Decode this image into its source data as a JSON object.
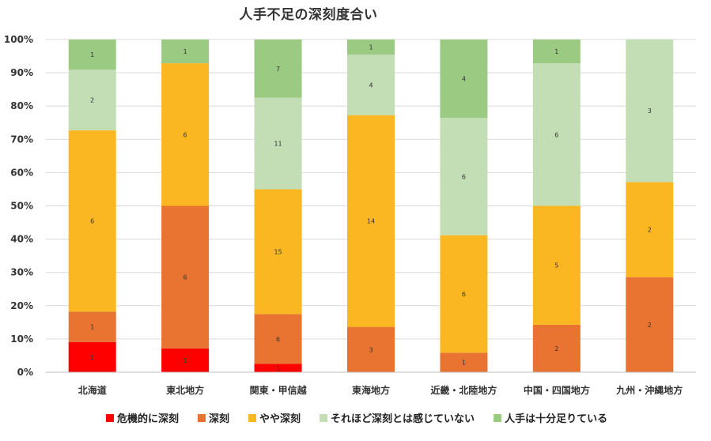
{
  "chart_data": {
    "type": "bar",
    "stacked": true,
    "normalized_percent": true,
    "title": "人手不足の深刻度合い",
    "categories": [
      "北海道",
      "東北地方",
      "関東・甲信越",
      "東海地方",
      "近畿・北陸地方",
      "中国・四国地方",
      "九州・沖縄地方"
    ],
    "series": [
      {
        "name": "危機的に深刻",
        "color": "#ff0000",
        "values": [
          1,
          1,
          1,
          0,
          0,
          0,
          0
        ]
      },
      {
        "name": "深刻",
        "color": "#e97331",
        "values": [
          1,
          6,
          6,
          3,
          1,
          2,
          2
        ]
      },
      {
        "name": "やや深刻",
        "color": "#fbb721",
        "values": [
          6,
          6,
          15,
          14,
          6,
          5,
          2
        ]
      },
      {
        "name": "それほど深刻とは感じていない",
        "color": "#c3deb5",
        "values": [
          2,
          0,
          11,
          4,
          6,
          6,
          3
        ]
      },
      {
        "name": "人手は十分足りている",
        "color": "#9bcb82",
        "values": [
          1,
          1,
          7,
          1,
          4,
          1,
          0
        ]
      }
    ],
    "y_ticks": [
      "0%",
      "10%",
      "20%",
      "30%",
      "40%",
      "50%",
      "60%",
      "70%",
      "80%",
      "90%",
      "100%"
    ],
    "ylim": [
      0,
      100
    ],
    "grid": true,
    "legend_position": "bottom"
  }
}
